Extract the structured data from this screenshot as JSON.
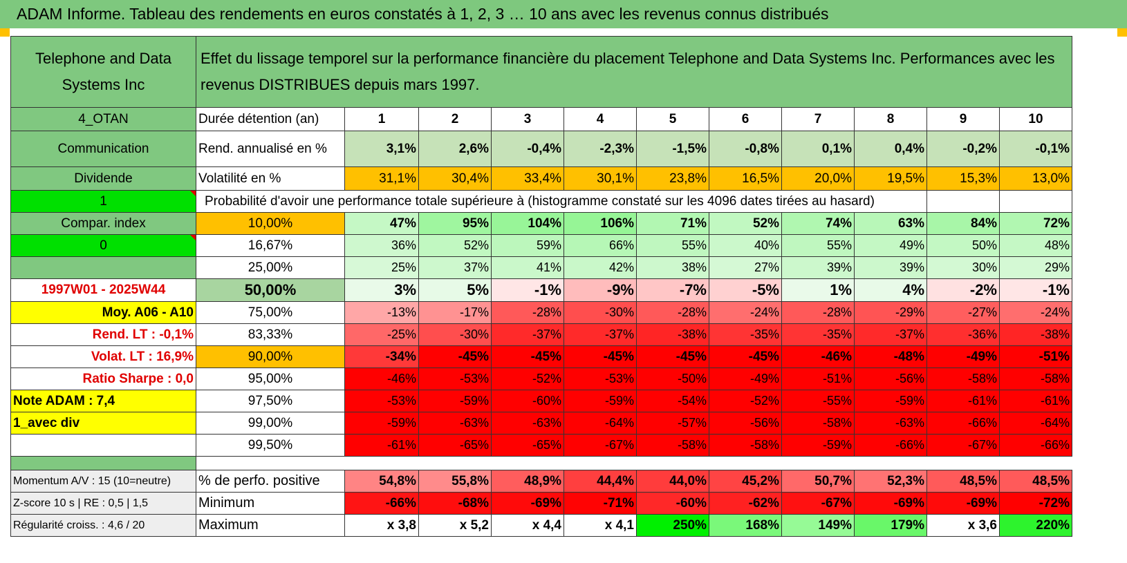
{
  "title": "ADAM Informe. Tableau des rendements en euros constatés à 1, 2, 3 … 10 ans avec les revenus connus distribués",
  "header": {
    "company": "Telephone and Data Systems Inc",
    "description": "Effet du lissage temporel sur la performance financière du placement Telephone and Data Systems Inc. Performances avec les revenus DISTRIBUES depuis mars 1997."
  },
  "left": {
    "code": "4_OTAN",
    "sector": "Communication",
    "type": "Dividende",
    "flag1": "1",
    "compar": "Compar. index",
    "flag0": "0",
    "period": "1997W01 - 2025W44",
    "moy": "Moy. A06 - A10",
    "rend_lt": "Rend. LT :    -0,1%",
    "volat_lt": "Volat. LT :    16,9%",
    "sharpe": "Ratio Sharpe :    0,0",
    "note": "Note ADAM : 7,4",
    "avec_div": "1_avec div"
  },
  "labels": {
    "duree": "Durée détention (an)",
    "rend": "Rend. annualisé en %",
    "vol": "Volatilité en %",
    "proba": "Probabilité d'avoir une performance totale supérieure à (histogramme constaté sur les 4096 dates tirées au hasard)"
  },
  "years": [
    "1",
    "2",
    "3",
    "4",
    "5",
    "6",
    "7",
    "8",
    "9",
    "10"
  ],
  "rend_values": [
    "3,1%",
    "2,6%",
    "-0,4%",
    "-2,3%",
    "-1,5%",
    "-0,8%",
    "0,1%",
    "0,4%",
    "-0,2%",
    "-0,1%"
  ],
  "vol_values": [
    "31,1%",
    "30,4%",
    "33,4%",
    "30,1%",
    "23,8%",
    "16,5%",
    "20,0%",
    "19,5%",
    "15,3%",
    "13,0%"
  ],
  "percentile_rows": [
    {
      "label": "10,00%",
      "values": [
        "47%",
        "95%",
        "104%",
        "106%",
        "71%",
        "52%",
        "74%",
        "63%",
        "84%",
        "72%"
      ]
    },
    {
      "label": "16,67%",
      "values": [
        "36%",
        "52%",
        "59%",
        "66%",
        "55%",
        "40%",
        "55%",
        "49%",
        "50%",
        "48%"
      ]
    },
    {
      "label": "25,00%",
      "values": [
        "25%",
        "37%",
        "41%",
        "42%",
        "38%",
        "27%",
        "39%",
        "39%",
        "30%",
        "29%"
      ]
    },
    {
      "label": "50,00%",
      "values": [
        "3%",
        "5%",
        "-1%",
        "-9%",
        "-7%",
        "-5%",
        "1%",
        "4%",
        "-2%",
        "-1%"
      ]
    },
    {
      "label": "75,00%",
      "values": [
        "-13%",
        "-17%",
        "-28%",
        "-30%",
        "-28%",
        "-24%",
        "-28%",
        "-29%",
        "-27%",
        "-24%"
      ]
    },
    {
      "label": "83,33%",
      "values": [
        "-25%",
        "-30%",
        "-37%",
        "-37%",
        "-38%",
        "-35%",
        "-35%",
        "-37%",
        "-36%",
        "-38%"
      ]
    },
    {
      "label": "90,00%",
      "values": [
        "-34%",
        "-45%",
        "-45%",
        "-45%",
        "-45%",
        "-45%",
        "-46%",
        "-48%",
        "-49%",
        "-51%"
      ]
    },
    {
      "label": "95,00%",
      "values": [
        "-46%",
        "-53%",
        "-52%",
        "-53%",
        "-50%",
        "-49%",
        "-51%",
        "-56%",
        "-58%",
        "-58%"
      ]
    },
    {
      "label": "97,50%",
      "values": [
        "-53%",
        "-59%",
        "-60%",
        "-59%",
        "-54%",
        "-52%",
        "-55%",
        "-59%",
        "-61%",
        "-61%"
      ]
    },
    {
      "label": "99,00%",
      "values": [
        "-59%",
        "-63%",
        "-63%",
        "-64%",
        "-57%",
        "-56%",
        "-58%",
        "-63%",
        "-66%",
        "-64%"
      ]
    },
    {
      "label": "99,50%",
      "values": [
        "-61%",
        "-65%",
        "-65%",
        "-67%",
        "-58%",
        "-58%",
        "-59%",
        "-66%",
        "-67%",
        "-66%"
      ]
    }
  ],
  "bottom": {
    "momentum": "Momentum A/V : 15 (10=neutre)",
    "zscore": "Z-score 10 s | RE : 0,5 | 1,5",
    "regularite": "Régularité croiss. : 4,6 / 20",
    "pos_label": "% de perfo. positive",
    "min_label": "Minimum",
    "max_label": "Maximum",
    "pos_values": [
      "54,8%",
      "55,8%",
      "48,9%",
      "44,4%",
      "44,0%",
      "45,2%",
      "50,7%",
      "52,3%",
      "48,5%",
      "48,5%"
    ],
    "min_values": [
      "-66%",
      "-68%",
      "-69%",
      "-71%",
      "-60%",
      "-62%",
      "-67%",
      "-69%",
      "-69%",
      "-72%"
    ],
    "max_values": [
      "x 3,8",
      "x 5,2",
      "x 4,4",
      "x 4,1",
      "250%",
      "168%",
      "149%",
      "179%",
      "x 3,6",
      "220%"
    ]
  },
  "colors": {
    "title_green": "#7ec87e",
    "light_green": "#a8d5a0",
    "bright_green": "#00e000",
    "yellow": "#ffff00",
    "orange": "#ffc000",
    "red": "#ff0000"
  }
}
